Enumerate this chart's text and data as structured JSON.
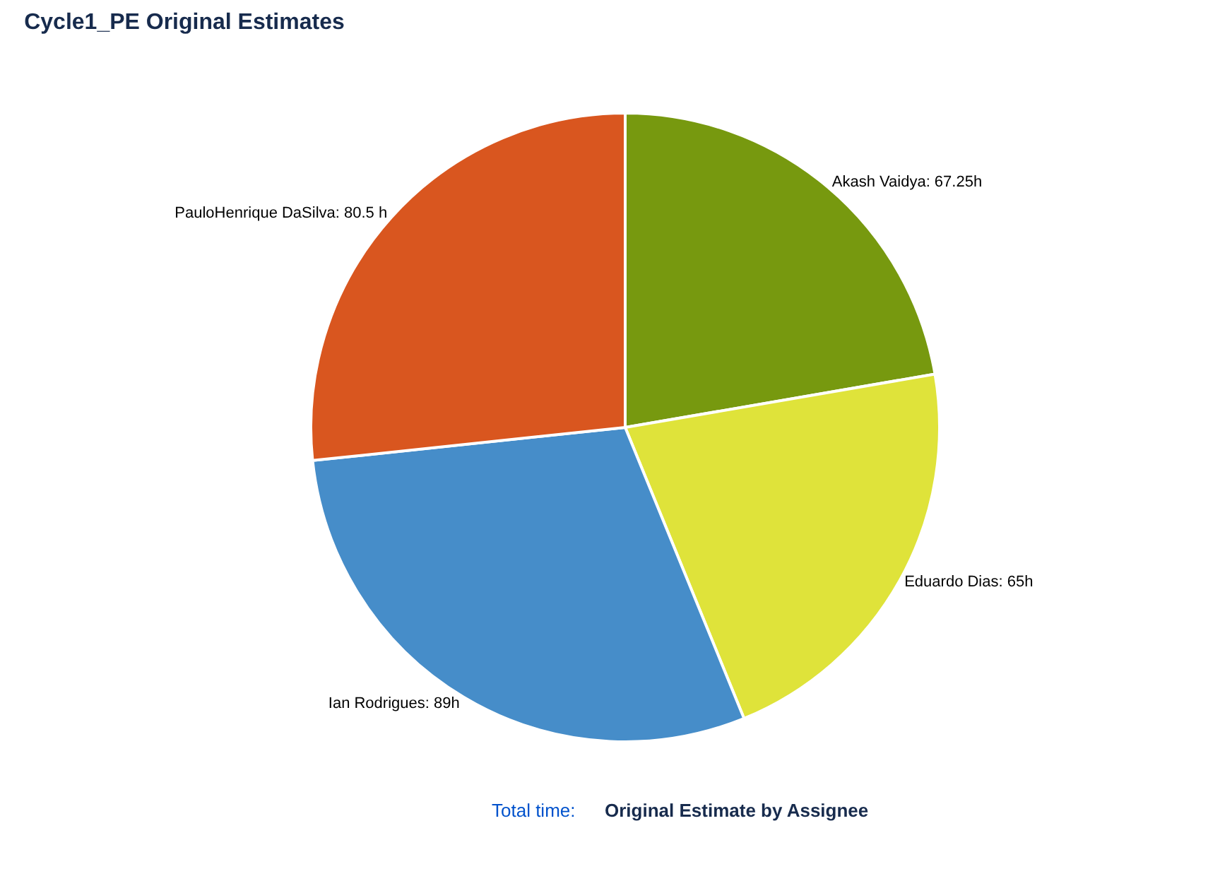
{
  "chart_data": {
    "type": "pie",
    "title": "Cycle1_PE Original Estimates",
    "categories": [
      "Akash Vaidya",
      "Eduardo Dias",
      "Ian Rodrigues",
      "PauloHenrique DaSilva"
    ],
    "values": [
      67.25,
      65,
      89,
      80.5
    ],
    "colors": [
      "#77990f",
      "#dfe33a",
      "#468dc9",
      "#d9561f"
    ],
    "value_labels": [
      "67.25h",
      "65h",
      "89h",
      "80.5 h"
    ],
    "legend": false,
    "annotations": [
      "Total time:",
      "Original Estimate by Assignee"
    ]
  }
}
